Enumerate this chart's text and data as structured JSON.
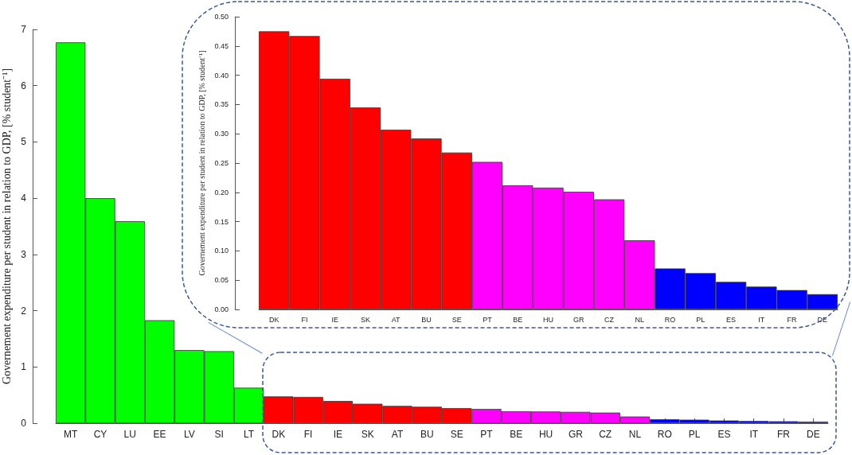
{
  "chart_data": [
    {
      "type": "bar",
      "ylabel": "Governement expenditure per student in relation to GDP, [% student⁻¹]",
      "categories": [
        "MT",
        "CY",
        "LU",
        "EE",
        "LV",
        "SI",
        "LT",
        "DK",
        "FI",
        "IE",
        "SK",
        "AT",
        "BU",
        "SE",
        "PT",
        "BE",
        "HU",
        "GR",
        "CZ",
        "NL",
        "RO",
        "PL",
        "ES",
        "IT",
        "FR",
        "DE"
      ],
      "values": [
        6.77,
        4.0,
        3.59,
        1.83,
        1.3,
        1.28,
        0.63,
        0.475,
        0.467,
        0.394,
        0.345,
        0.307,
        0.292,
        0.268,
        0.252,
        0.212,
        0.208,
        0.201,
        0.188,
        0.118,
        0.07,
        0.062,
        0.047,
        0.039,
        0.033,
        0.026
      ],
      "colors": [
        "#00ff00",
        "#00ff00",
        "#00ff00",
        "#00ff00",
        "#00ff00",
        "#00ff00",
        "#00ff00",
        "#ff0000",
        "#ff0000",
        "#ff0000",
        "#ff0000",
        "#ff0000",
        "#ff0000",
        "#ff0000",
        "#ff00ff",
        "#ff00ff",
        "#ff00ff",
        "#ff00ff",
        "#ff00ff",
        "#ff00ff",
        "#0000ff",
        "#0000ff",
        "#0000ff",
        "#0000ff",
        "#0000ff",
        "#0000ff"
      ],
      "ylim": [
        0,
        7
      ],
      "yticks": [
        0,
        1,
        2,
        3,
        4,
        5,
        6,
        7
      ]
    },
    {
      "type": "bar",
      "ylabel": "Governement expenditure per student in relation to GDP, [% student⁻¹]",
      "categories": [
        "DK",
        "FI",
        "IE",
        "SK",
        "AT",
        "BU",
        "SE",
        "PT",
        "BE",
        "HU",
        "GR",
        "CZ",
        "NL",
        "RO",
        "PL",
        "ES",
        "IT",
        "FR",
        "DE"
      ],
      "values": [
        0.475,
        0.467,
        0.394,
        0.345,
        0.307,
        0.292,
        0.268,
        0.252,
        0.212,
        0.208,
        0.201,
        0.188,
        0.118,
        0.07,
        0.062,
        0.047,
        0.039,
        0.033,
        0.026
      ],
      "colors": [
        "#ff0000",
        "#ff0000",
        "#ff0000",
        "#ff0000",
        "#ff0000",
        "#ff0000",
        "#ff0000",
        "#ff00ff",
        "#ff00ff",
        "#ff00ff",
        "#ff00ff",
        "#ff00ff",
        "#ff00ff",
        "#0000ff",
        "#0000ff",
        "#0000ff",
        "#0000ff",
        "#0000ff",
        "#0000ff"
      ],
      "ylim": [
        0,
        0.5
      ],
      "yticks": [
        {
          "value": 0,
          "label": "0.00"
        },
        {
          "value": 0.05,
          "label": "0.05"
        },
        {
          "value": 0.1,
          "label": "0.10"
        },
        {
          "value": 0.15,
          "label": "0.15"
        },
        {
          "value": 0.2,
          "label": "0.20"
        },
        {
          "value": 0.25,
          "label": "0.25"
        },
        {
          "value": 0.3,
          "label": "0.30"
        },
        {
          "value": 0.35,
          "label": "0.35"
        },
        {
          "value": 0.4,
          "label": "0.40"
        },
        {
          "value": 0.45,
          "label": "0.45"
        },
        {
          "value": 0.5,
          "label": "0.50"
        }
      ]
    }
  ]
}
